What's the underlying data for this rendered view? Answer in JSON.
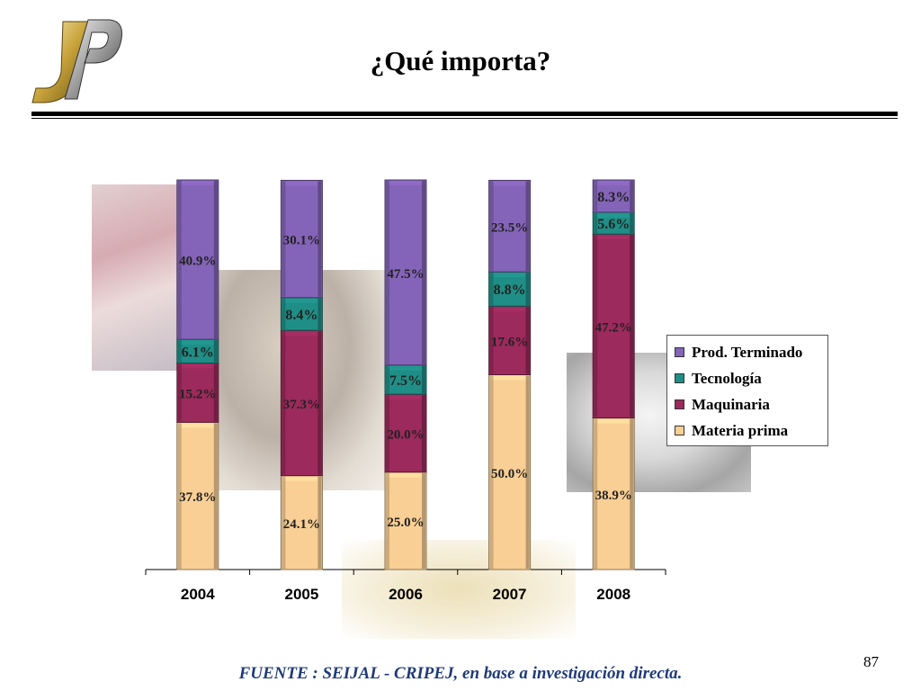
{
  "slide": {
    "title": "¿Qué importa?",
    "source": "FUENTE :  SEIJAL - CRIPEJ,  en base a investigación directa.",
    "page_number": "87",
    "logo_text": "JP"
  },
  "colors": {
    "Materia prima": "#f9cf95",
    "Maquinaria": "#9c2a5c",
    "Tecnología": "#1f8e86",
    "Prod. Terminado": "#8464b8"
  },
  "chart_data": {
    "type": "bar",
    "stacked": true,
    "percent_stacked": true,
    "categories": [
      "2004",
      "2005",
      "2006",
      "2007",
      "2008"
    ],
    "series": [
      {
        "name": "Materia prima",
        "values": [
          37.8,
          24.1,
          25.0,
          50.0,
          38.9
        ],
        "labels": [
          "37.8%",
          "24.1%",
          "25.0%",
          "50.0%",
          "38.9%"
        ]
      },
      {
        "name": "Maquinaria",
        "values": [
          15.2,
          37.3,
          20.0,
          17.6,
          47.2
        ],
        "labels": [
          "15.2%",
          "37.3%",
          "20.0%",
          "17.6%",
          "47.2%"
        ]
      },
      {
        "name": "Tecnología",
        "values": [
          6.1,
          8.4,
          7.5,
          8.8,
          5.6
        ],
        "labels": [
          "6.1%",
          "8.4%",
          "7.5%",
          "8.8%",
          "5.6%"
        ]
      },
      {
        "name": "Prod. Terminado",
        "values": [
          40.9,
          30.1,
          47.5,
          23.5,
          8.3
        ],
        "labels": [
          "40.9%",
          "30.1%",
          "47.5%",
          "23.5%",
          "8.3%"
        ]
      }
    ],
    "legend": [
      "Prod. Terminado",
      "Tecnología",
      "Maquinaria",
      "Materia prima"
    ],
    "legend_position": "right",
    "ylim": [
      0,
      100
    ],
    "grid": false
  }
}
